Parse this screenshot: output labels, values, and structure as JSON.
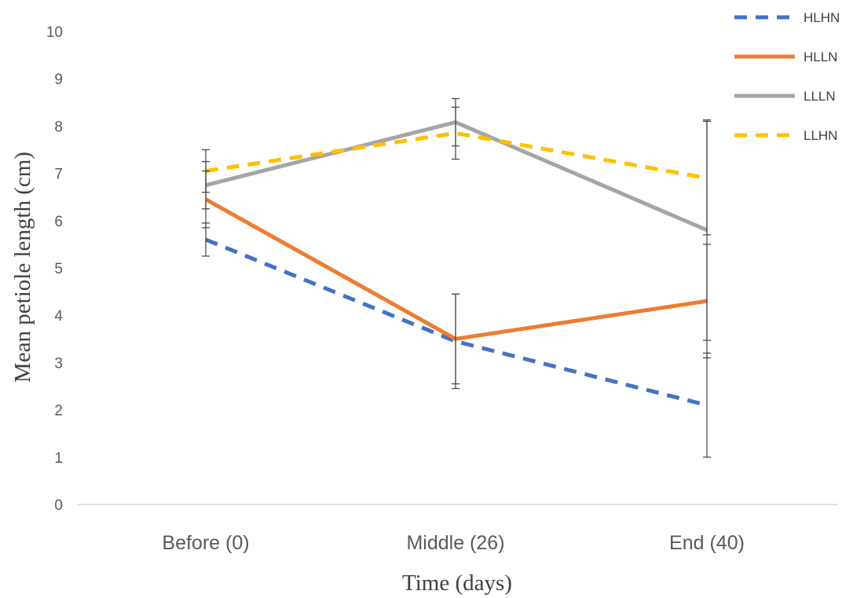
{
  "chart_data": {
    "type": "line",
    "title": "",
    "xlabel": "Time (days)",
    "ylabel": "Mean petiole length (cm)",
    "categories": [
      "Before (0)",
      "Middle (26)",
      "End (40)"
    ],
    "ylim": [
      0,
      10
    ],
    "yticks": [
      0,
      1,
      2,
      3,
      4,
      5,
      6,
      7,
      8,
      9,
      10
    ],
    "grid": false,
    "legend_position": "top-right",
    "series": [
      {
        "name": "HLHN",
        "values": [
          5.6,
          3.45,
          2.1
        ],
        "errors": [
          0.35,
          1.0,
          1.1
        ],
        "color": "#4472C4",
        "dashed": true
      },
      {
        "name": "HLLN",
        "values": [
          6.45,
          3.5,
          4.3
        ],
        "errors": [
          0.6,
          0.95,
          1.2
        ],
        "color": "#ED7D31",
        "dashed": false
      },
      {
        "name": "LLLN",
        "values": [
          6.75,
          8.08,
          5.8
        ],
        "errors": [
          0.5,
          0.5,
          2.33
        ],
        "color": "#A5A5A5",
        "dashed": false
      },
      {
        "name": "LLHN",
        "values": [
          7.05,
          7.85,
          6.9
        ],
        "errors": [
          0.45,
          0.55,
          1.2
        ],
        "color": "#FFC000",
        "dashed": true
      }
    ]
  }
}
